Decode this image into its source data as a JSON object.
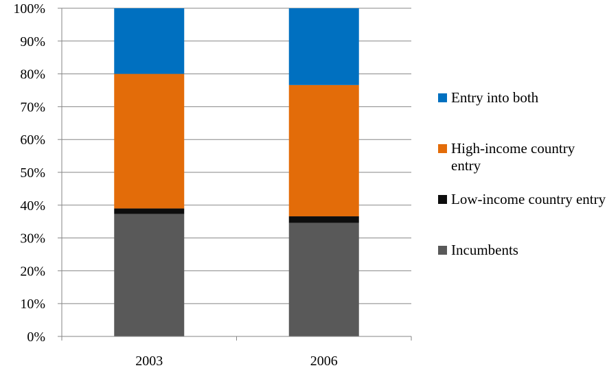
{
  "chart_data": {
    "type": "bar",
    "stacked": true,
    "percent": true,
    "categories": [
      "2003",
      "2006"
    ],
    "series": [
      {
        "name": "Incumbents",
        "color": "#595959",
        "values": [
          37.3,
          34.6
        ]
      },
      {
        "name": "Low-income country entry",
        "color": "#0d0d0d",
        "values": [
          1.7,
          2.0
        ]
      },
      {
        "name": "High-income country entry",
        "color": "#e36c09",
        "values": [
          41.0,
          40.0
        ]
      },
      {
        "name": "Entry into both",
        "color": "#0070c0",
        "values": [
          20.0,
          23.4
        ]
      }
    ],
    "ylim": [
      0,
      100
    ],
    "yticks": [
      "0%",
      "10%",
      "20%",
      "30%",
      "40%",
      "50%",
      "60%",
      "70%",
      "80%",
      "90%",
      "100%"
    ],
    "grid": true,
    "legend_position": "right",
    "legend_order": [
      "Entry into both",
      "High-income country entry",
      "Low-income country entry",
      "Incumbents"
    ]
  }
}
